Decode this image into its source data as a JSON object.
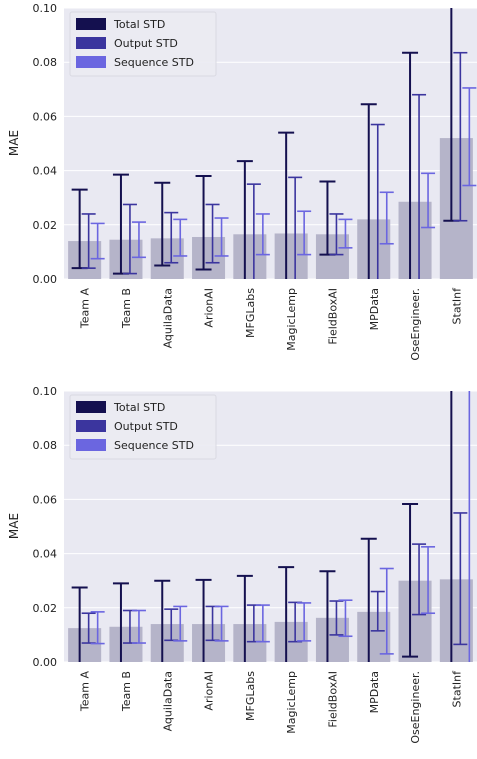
{
  "chart_data": [
    {
      "type": "bar",
      "title": "",
      "xlabel": "",
      "ylabel": "MAE",
      "ylim": [
        0,
        0.1
      ],
      "yticks": [
        0.0,
        0.02,
        0.04,
        0.06,
        0.08,
        0.1
      ],
      "ytick_labels": [
        "0.00",
        "0.02",
        "0.04",
        "0.06",
        "0.08",
        "0.10"
      ],
      "grid": true,
      "legend_position": "top-left",
      "categories": [
        "Team A",
        "Team B",
        "AquilaData",
        "ArionAI",
        "MFGLabs",
        "MagicLemp",
        "FieldBoxAI",
        "MPData",
        "OseEngineer.",
        "StatInf"
      ],
      "values": [
        0.014,
        0.0145,
        0.015,
        0.0155,
        0.0165,
        0.0168,
        0.0165,
        0.022,
        0.0285,
        0.052
      ],
      "series": [
        {
          "name": "Total STD",
          "color": "#14104f",
          "low": [
            0.004,
            0.002,
            0.005,
            0.0035,
            0.0,
            0.0,
            0.009,
            0.0,
            0.0,
            0.0215
          ],
          "high": [
            0.033,
            0.0385,
            0.0355,
            0.038,
            0.0435,
            0.054,
            0.036,
            0.0645,
            0.0835,
            0.1
          ]
        },
        {
          "name": "Output STD",
          "color": "#3b359e",
          "low": [
            0.004,
            0.002,
            0.006,
            0.006,
            0.0,
            0.0,
            0.009,
            0.0,
            0.0,
            0.0215
          ],
          "high": [
            0.024,
            0.0275,
            0.0245,
            0.0275,
            0.035,
            0.0375,
            0.024,
            0.057,
            0.068,
            0.0835
          ]
        },
        {
          "name": "Sequence STD",
          "color": "#6b66e0",
          "low": [
            0.0075,
            0.008,
            0.0085,
            0.0085,
            0.009,
            0.009,
            0.0115,
            0.013,
            0.019,
            0.0345
          ],
          "high": [
            0.0205,
            0.021,
            0.022,
            0.0225,
            0.024,
            0.025,
            0.022,
            0.032,
            0.039,
            0.0705
          ]
        }
      ]
    },
    {
      "type": "bar",
      "title": "",
      "xlabel": "",
      "ylabel": "MAE",
      "ylim": [
        0,
        0.1
      ],
      "yticks": [
        0.0,
        0.02,
        0.04,
        0.06,
        0.08,
        0.1
      ],
      "ytick_labels": [
        "0.00",
        "0.02",
        "0.04",
        "0.06",
        "0.08",
        "0.10"
      ],
      "grid": true,
      "legend_position": "top-left",
      "categories": [
        "Team A",
        "Team B",
        "AquilaData",
        "ArionAI",
        "MFGLabs",
        "MagicLemp",
        "FieldBoxAI",
        "MPData",
        "OseEngineer.",
        "StatInf"
      ],
      "values": [
        0.0125,
        0.013,
        0.014,
        0.014,
        0.014,
        0.0148,
        0.0163,
        0.0185,
        0.03,
        0.0305
      ],
      "series": [
        {
          "name": "Total STD",
          "color": "#14104f",
          "low": [
            0.0,
            0.0,
            0.0,
            0.0,
            0.0,
            0.0,
            0.0,
            0.0,
            0.002,
            0.0
          ],
          "high": [
            0.0275,
            0.029,
            0.03,
            0.0303,
            0.0318,
            0.035,
            0.0335,
            0.0455,
            0.0583,
            0.1
          ]
        },
        {
          "name": "Output STD",
          "color": "#3b359e",
          "low": [
            0.007,
            0.007,
            0.008,
            0.008,
            0.0075,
            0.0075,
            0.01,
            0.0115,
            0.0175,
            0.0065
          ],
          "high": [
            0.018,
            0.019,
            0.0195,
            0.0205,
            0.021,
            0.022,
            0.0225,
            0.026,
            0.0435,
            0.055
          ]
        },
        {
          "name": "Sequence STD",
          "color": "#6b66e0",
          "low": [
            0.0068,
            0.007,
            0.0078,
            0.0078,
            0.0075,
            0.0078,
            0.0095,
            0.003,
            0.018,
            0.0
          ],
          "high": [
            0.0185,
            0.019,
            0.0205,
            0.0205,
            0.021,
            0.0218,
            0.0228,
            0.0345,
            0.0425,
            0.1
          ]
        }
      ]
    }
  ]
}
